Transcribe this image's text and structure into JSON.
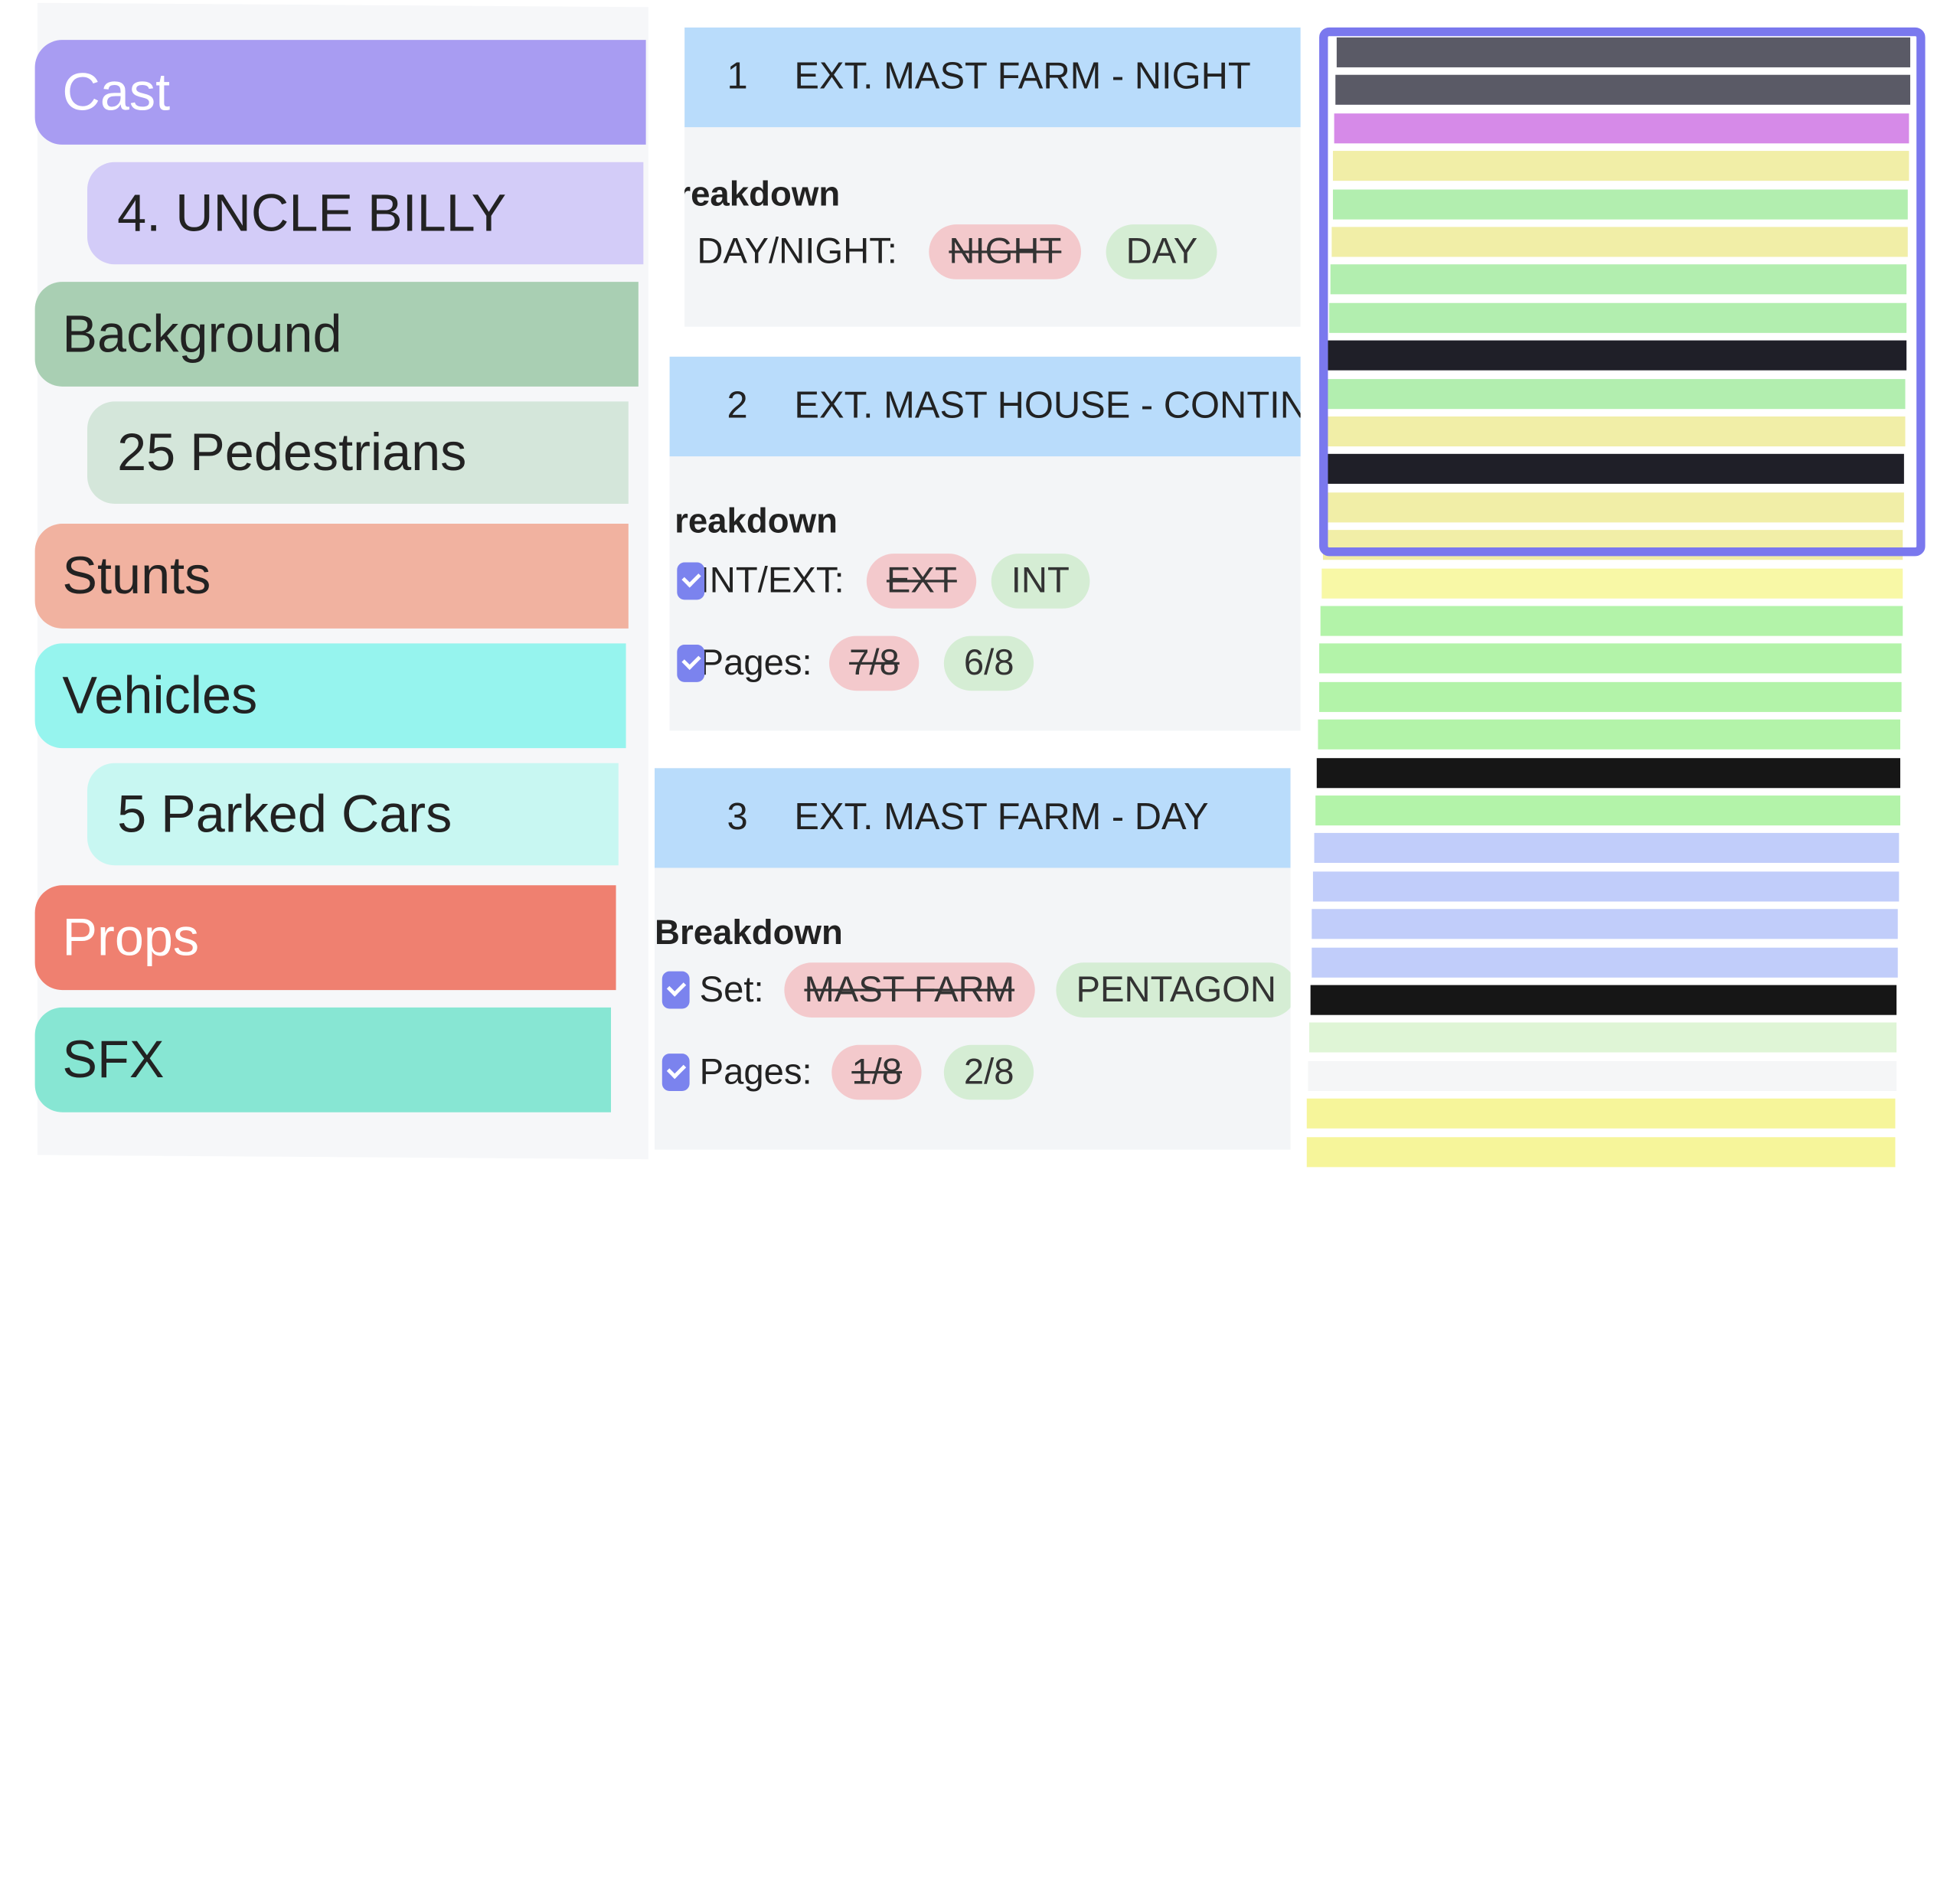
{
  "categories": [
    {
      "label": "Cast",
      "color": "#a89cf2",
      "sub": {
        "label": "4. UNCLE BILLY",
        "color": "#d3ccf8"
      }
    },
    {
      "label": "Background",
      "color": "#a9cfb3",
      "sub": {
        "label": "25 Pedestrians",
        "color": "#d4e6da"
      }
    },
    {
      "label": "Stunts",
      "color": "#f1b2a0"
    },
    {
      "label": "Vehicles",
      "color": "#96f4ee",
      "sub": {
        "label": "5 Parked Cars",
        "color": "#c8f7f2"
      }
    },
    {
      "label": "Props",
      "color": "#ef8070"
    },
    {
      "label": "SFX",
      "color": "#87e6d3"
    }
  ],
  "scenes": [
    {
      "number": "1",
      "title": "EXT. MAST FARM - NIGHT",
      "breakdown_label": "reakdown",
      "rows": [
        {
          "label": "DAY/NIGHT:",
          "old": "NIGHT",
          "new": "DAY"
        }
      ]
    },
    {
      "number": "2",
      "title": "EXT. MAST HOUSE - CONTIN",
      "breakdown_label": "reakdown",
      "rows": [
        {
          "label": "INT/EXT:",
          "old": "EXT",
          "new": "INT"
        },
        {
          "label": "Pages:",
          "old": "7/8",
          "new": "6/8"
        }
      ]
    },
    {
      "number": "3",
      "title": "EXT. MAST FARM - DAY",
      "breakdown_label": "Breakdown",
      "rows": [
        {
          "label": "Set:",
          "old": "MAST FARM",
          "new": "PENTAGON"
        },
        {
          "label": "Pages:",
          "old": "1/8",
          "new": "2/8"
        }
      ]
    }
  ],
  "stripboard": {
    "frame_color": "#7a78ee",
    "strips": [
      "#5a5a66",
      "#5a5a66",
      "#d68ae8",
      "#f1eea7",
      "#b2eeaf",
      "#f1eea7",
      "#b2eeaf",
      "#b2eeaf",
      "#1f1f28",
      "#b2eeaf",
      "#f1eea7",
      "#1f1f28",
      "#f1eea7",
      "#f1eea7",
      "#f8f8a6",
      "#b3f3a9",
      "#b3f3a9",
      "#b3f3a9",
      "#b3f3a9",
      "#161616",
      "#b3f3a9",
      "#c1cdfa",
      "#c1cdfa",
      "#c1cdfa",
      "#c1cdfa",
      "#161616",
      "#dff5d6",
      "#f5f6f7",
      "#f6f59a",
      "#f6f59a"
    ]
  }
}
